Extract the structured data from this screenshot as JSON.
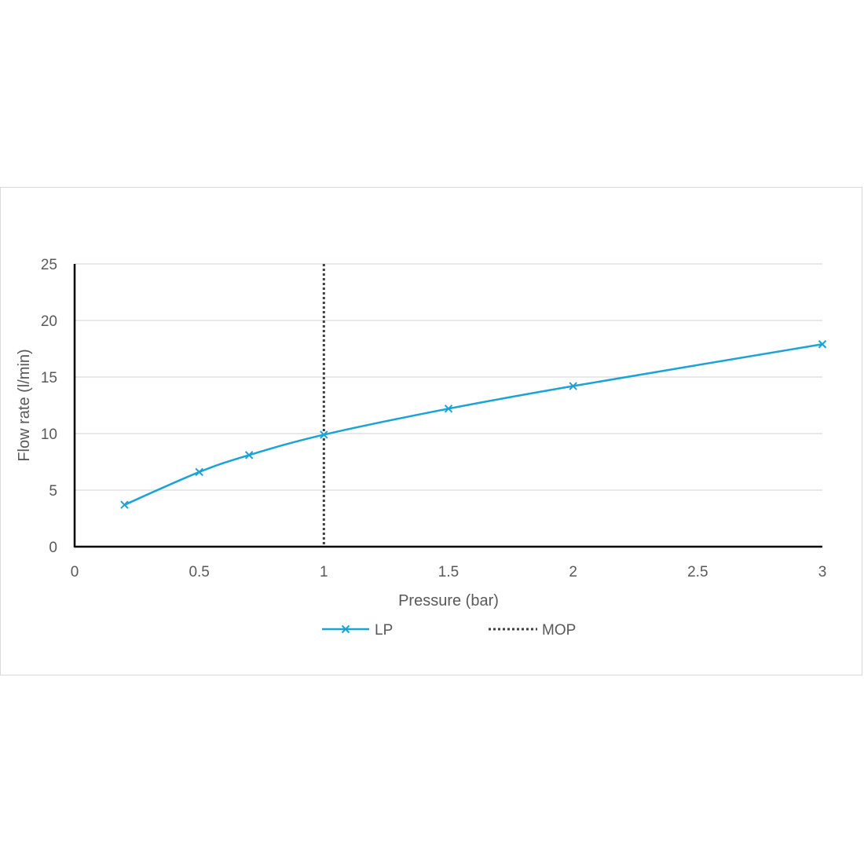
{
  "chart_data": {
    "type": "line",
    "title": "",
    "xlabel": "Pressure (bar)",
    "ylabel": "Flow rate (l/min)",
    "xlim": [
      0,
      3
    ],
    "ylim": [
      0,
      25
    ],
    "x_ticks": [
      "0",
      "0.5",
      "1",
      "1.5",
      "2",
      "2.5",
      "3"
    ],
    "y_ticks": [
      "0",
      "5",
      "10",
      "15",
      "20",
      "25"
    ],
    "grid": "horizontal",
    "legend_position": "bottom",
    "series": [
      {
        "name": "LP",
        "color": "#1aa3d4",
        "marker": "x",
        "x": [
          0.2,
          0.5,
          0.7,
          1.0,
          1.5,
          2.0,
          3.0
        ],
        "y": [
          3.7,
          6.6,
          8.1,
          9.9,
          12.2,
          14.2,
          17.9
        ]
      },
      {
        "name": "MOP",
        "color": "#404040",
        "style": "dotted",
        "x": [
          1.0,
          1.0
        ],
        "y": [
          0,
          25
        ]
      }
    ]
  }
}
